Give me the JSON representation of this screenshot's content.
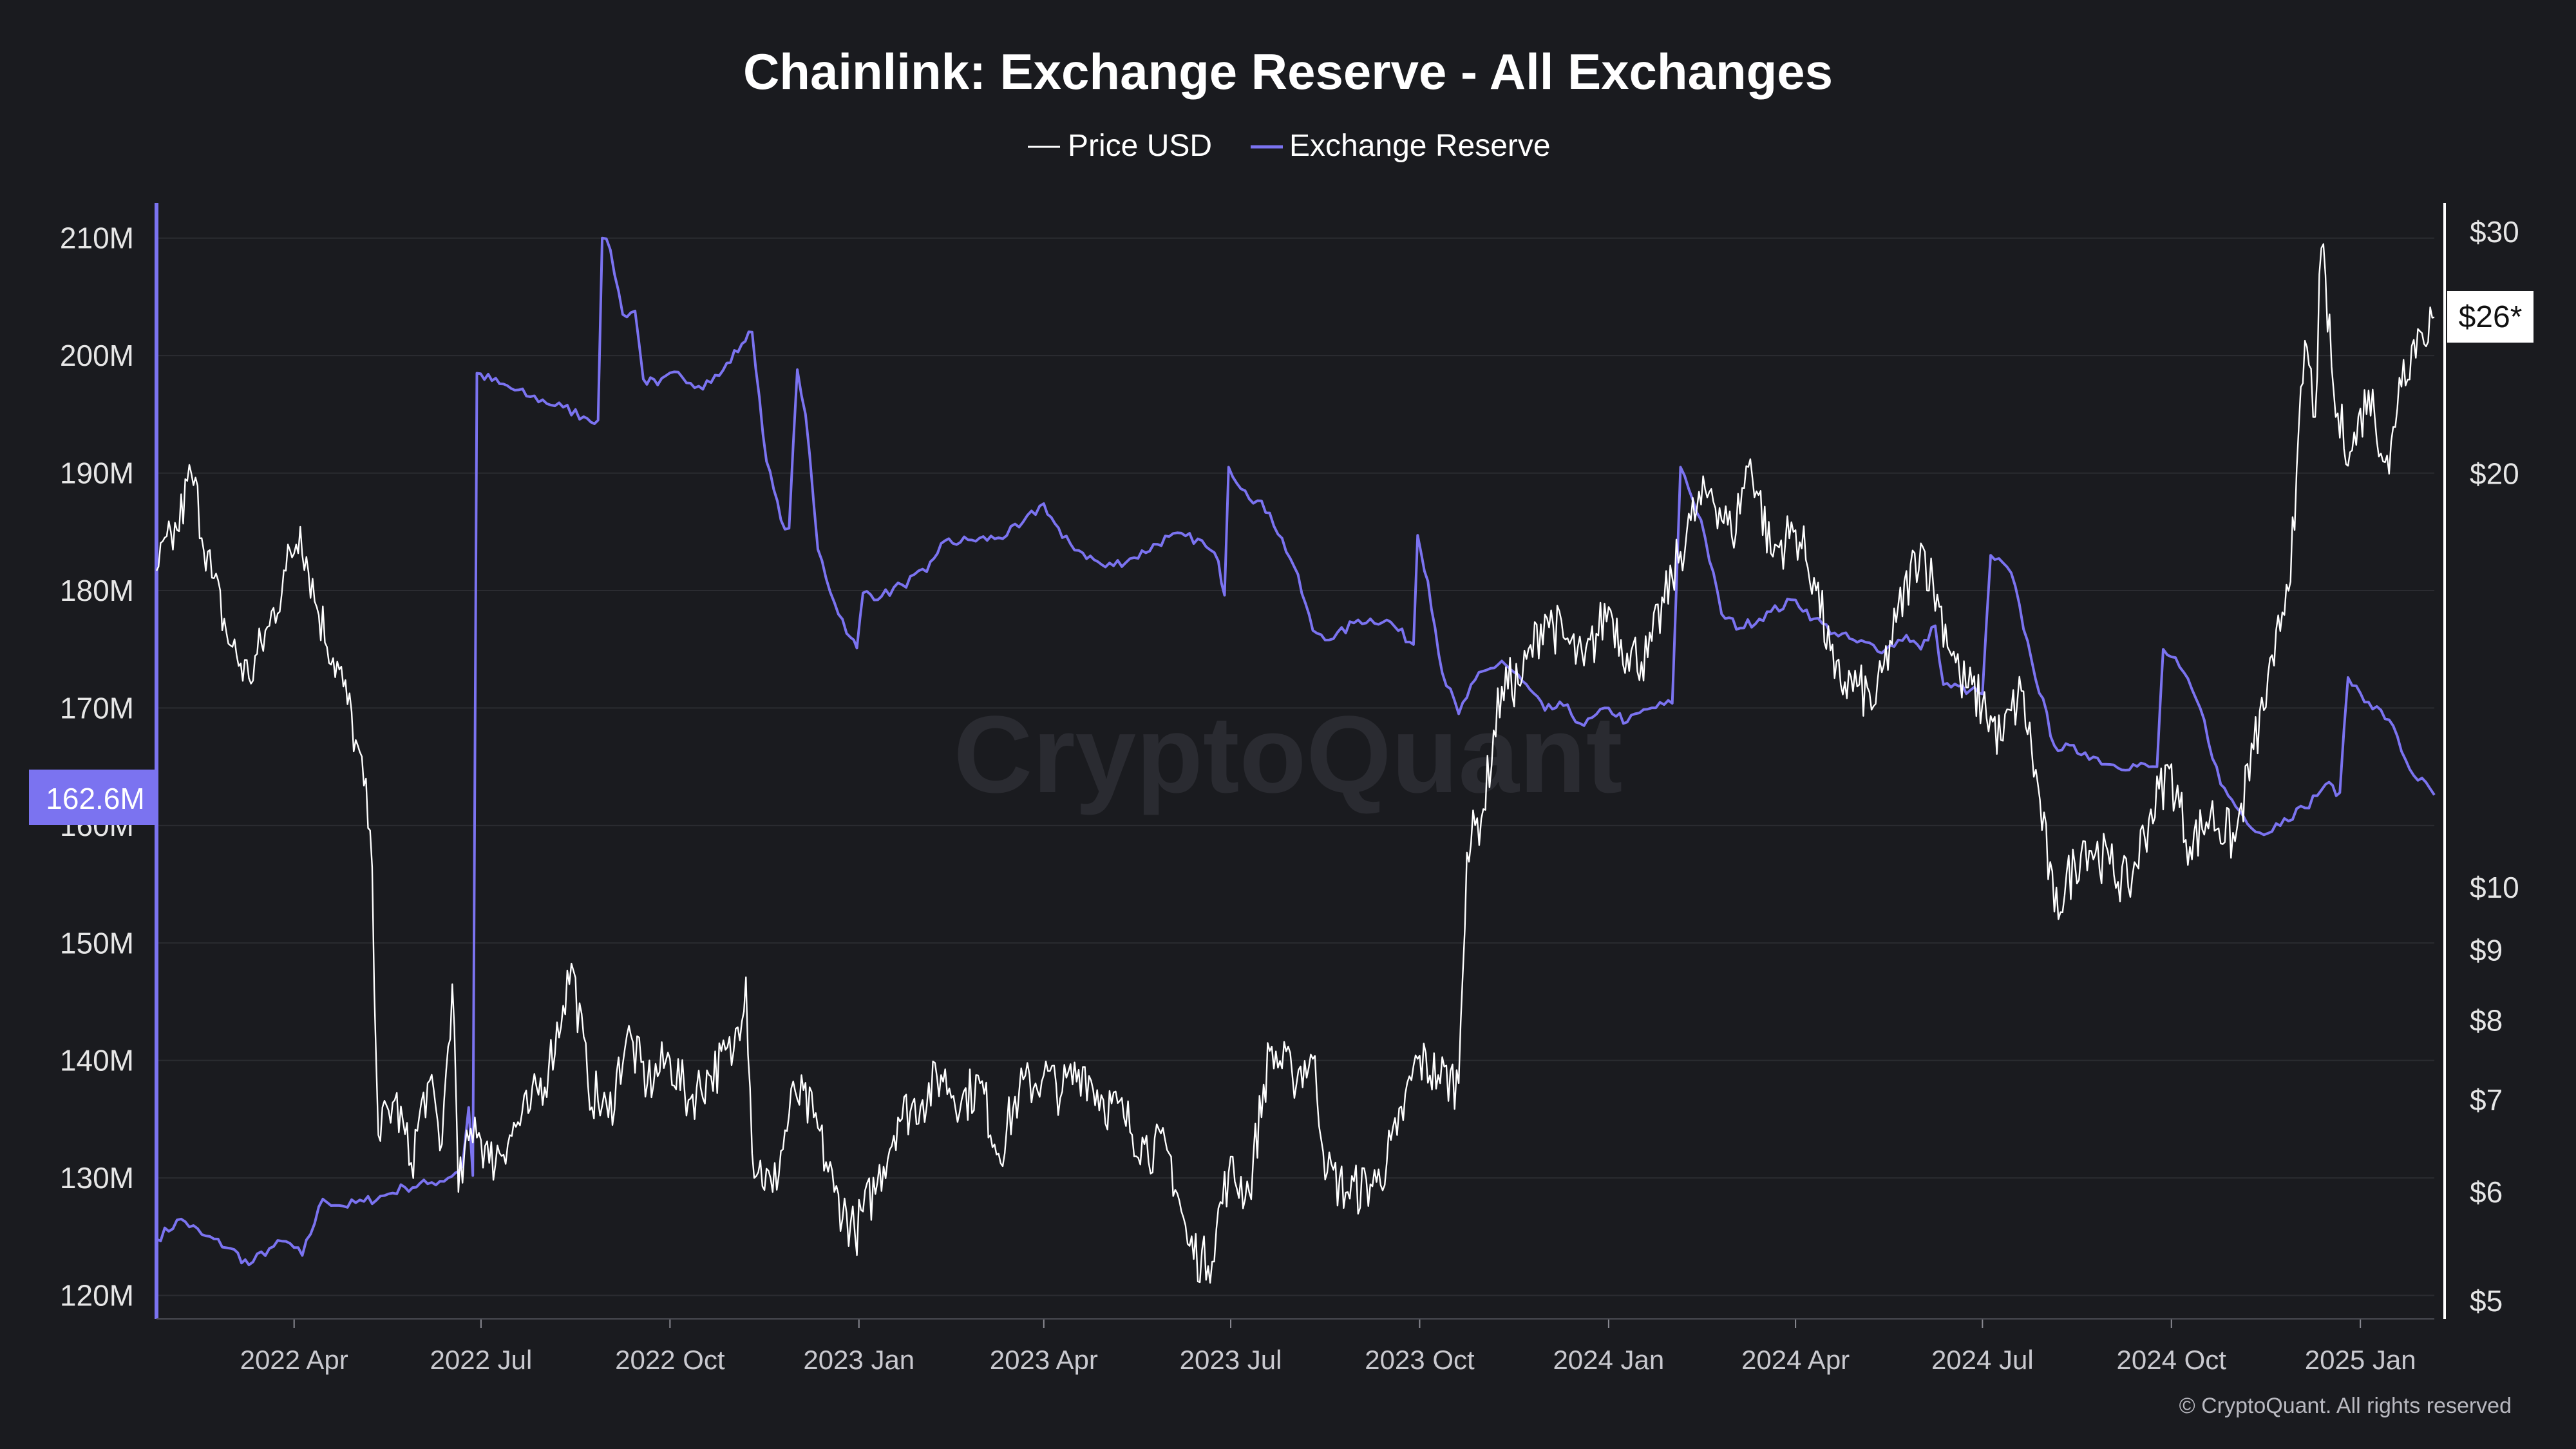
{
  "title": "Chainlink: Exchange Reserve - All Exchanges",
  "legend": [
    {
      "label": "Price USD",
      "color": "#ffffff"
    },
    {
      "label": "Exchange Reserve",
      "color": "#7b73f0"
    }
  ],
  "watermark": "CryptoQuant",
  "copyright": "© CryptoQuant. All rights reserved",
  "badges": {
    "reserve_current": "162.6M",
    "price_current": "$26*"
  },
  "colors": {
    "background": "#1a1b1f",
    "reserve": "#7b73f0",
    "price": "#ffffff",
    "grid": "#2b2c31"
  },
  "chart_data": {
    "type": "line",
    "title": "Chainlink: Exchange Reserve - All Exchanges",
    "grid": true,
    "legend_position": "top-center",
    "x_axis": {
      "type": "date",
      "range": [
        "2022-01-24",
        "2025-02-06"
      ],
      "tick_labels": [
        "2022 Apr",
        "2022 Jul",
        "2022 Oct",
        "2023 Jan",
        "2023 Apr",
        "2023 Jul",
        "2023 Oct",
        "2024 Jan",
        "2024 Apr",
        "2024 Jul",
        "2024 Oct",
        "2025 Jan"
      ],
      "tick_dates": [
        "2022-04-01",
        "2022-07-01",
        "2022-10-01",
        "2023-01-01",
        "2023-04-01",
        "2023-07-01",
        "2023-10-01",
        "2024-01-01",
        "2024-04-01",
        "2024-07-01",
        "2024-10-01",
        "2025-01-01"
      ]
    },
    "y_left": {
      "scale": "linear",
      "range": [
        118,
        213
      ],
      "tick_values": [
        120,
        130,
        140,
        150,
        160,
        170,
        180,
        190,
        200,
        210
      ],
      "tick_labels": [
        "120M",
        "130M",
        "140M",
        "150M",
        "160M",
        "170M",
        "180M",
        "190M",
        "200M",
        "210M"
      ]
    },
    "y_right": {
      "scale": "log",
      "range": [
        4.85,
        31.5
      ],
      "tick_values": [
        5,
        6,
        7,
        8,
        9,
        10,
        20,
        30
      ],
      "tick_labels": [
        "$5",
        "$6",
        "$7",
        "$8",
        "$9",
        "$10",
        "$20",
        "$30"
      ]
    },
    "series": [
      {
        "name": "Exchange Reserve",
        "axis": "left",
        "unit": "M",
        "points": [
          [
            "2022-01-24",
            124.8
          ],
          [
            "2022-02-05",
            126.5
          ],
          [
            "2022-02-15",
            125.2
          ],
          [
            "2022-03-01",
            124.0
          ],
          [
            "2022-03-10",
            122.6
          ],
          [
            "2022-03-20",
            124.0
          ],
          [
            "2022-03-28",
            124.6
          ],
          [
            "2022-04-05",
            123.4
          ],
          [
            "2022-04-15",
            128.2
          ],
          [
            "2022-04-25",
            127.6
          ],
          [
            "2022-05-05",
            128.0
          ],
          [
            "2022-05-15",
            128.5
          ],
          [
            "2022-05-25",
            129.2
          ],
          [
            "2022-06-05",
            129.5
          ],
          [
            "2022-06-15",
            130.0
          ],
          [
            "2022-06-22",
            131.0
          ],
          [
            "2022-06-25",
            136.0
          ],
          [
            "2022-06-27",
            130.2
          ],
          [
            "2022-06-29",
            198.5
          ],
          [
            "2022-07-10",
            197.6
          ],
          [
            "2022-07-25",
            196.5
          ],
          [
            "2022-08-10",
            195.6
          ],
          [
            "2022-08-20",
            194.8
          ],
          [
            "2022-08-27",
            194.5
          ],
          [
            "2022-08-29",
            210.0
          ],
          [
            "2022-09-02",
            209.0
          ],
          [
            "2022-09-08",
            203.5
          ],
          [
            "2022-09-14",
            203.8
          ],
          [
            "2022-09-18",
            198.0
          ],
          [
            "2022-09-25",
            197.5
          ],
          [
            "2022-10-05",
            198.6
          ],
          [
            "2022-10-15",
            197.4
          ],
          [
            "2022-10-25",
            198.3
          ],
          [
            "2022-11-05",
            201.0
          ],
          [
            "2022-11-10",
            202.0
          ],
          [
            "2022-11-17",
            191.0
          ],
          [
            "2022-11-24",
            186.0
          ],
          [
            "2022-11-28",
            185.3
          ],
          [
            "2022-12-02",
            198.8
          ],
          [
            "2022-12-06",
            195.0
          ],
          [
            "2022-12-12",
            183.5
          ],
          [
            "2022-12-20",
            179.0
          ],
          [
            "2022-12-28",
            176.0
          ],
          [
            "2022-12-31",
            175.1
          ],
          [
            "2023-01-03",
            179.8
          ],
          [
            "2023-01-12",
            179.5
          ],
          [
            "2023-01-22",
            180.5
          ],
          [
            "2023-02-03",
            181.6
          ],
          [
            "2023-02-10",
            184.0
          ],
          [
            "2023-02-25",
            184.3
          ],
          [
            "2023-03-10",
            184.5
          ],
          [
            "2023-03-20",
            185.4
          ],
          [
            "2023-04-01",
            187.4
          ],
          [
            "2023-04-10",
            184.5
          ],
          [
            "2023-04-20",
            183.2
          ],
          [
            "2023-05-01",
            182.0
          ],
          [
            "2023-05-15",
            182.8
          ],
          [
            "2023-06-01",
            184.6
          ],
          [
            "2023-06-15",
            184.4
          ],
          [
            "2023-06-25",
            182.5
          ],
          [
            "2023-06-28",
            179.6
          ],
          [
            "2023-06-30",
            190.5
          ],
          [
            "2023-07-08",
            188.5
          ],
          [
            "2023-07-20",
            186.6
          ],
          [
            "2023-08-01",
            182.0
          ],
          [
            "2023-08-10",
            176.6
          ],
          [
            "2023-08-20",
            175.9
          ],
          [
            "2023-09-01",
            177.5
          ],
          [
            "2023-09-15",
            177.5
          ],
          [
            "2023-09-28",
            175.4
          ],
          [
            "2023-09-30",
            184.7
          ],
          [
            "2023-10-05",
            180.8
          ],
          [
            "2023-10-12",
            173.0
          ],
          [
            "2023-10-20",
            169.5
          ],
          [
            "2023-10-28",
            172.4
          ],
          [
            "2023-11-10",
            174.0
          ],
          [
            "2023-11-20",
            172.3
          ],
          [
            "2023-12-01",
            169.8
          ],
          [
            "2023-12-10",
            170.2
          ],
          [
            "2023-12-20",
            168.5
          ],
          [
            "2024-01-01",
            170.0
          ],
          [
            "2024-01-10",
            168.8
          ],
          [
            "2024-01-20",
            169.9
          ],
          [
            "2024-02-01",
            170.4
          ],
          [
            "2024-02-05",
            190.5
          ],
          [
            "2024-02-15",
            186.0
          ],
          [
            "2024-02-25",
            178.0
          ],
          [
            "2024-03-05",
            176.8
          ],
          [
            "2024-03-20",
            178.2
          ],
          [
            "2024-04-01",
            179.2
          ],
          [
            "2024-04-10",
            177.6
          ],
          [
            "2024-04-20",
            176.4
          ],
          [
            "2024-05-01",
            175.6
          ],
          [
            "2024-05-15",
            175.0
          ],
          [
            "2024-05-25",
            176.2
          ],
          [
            "2024-06-01",
            175.0
          ],
          [
            "2024-06-08",
            177.0
          ],
          [
            "2024-06-12",
            172.0
          ],
          [
            "2024-06-25",
            171.5
          ],
          [
            "2024-07-01",
            171.2
          ],
          [
            "2024-07-05",
            183.0
          ],
          [
            "2024-07-15",
            181.5
          ],
          [
            "2024-07-25",
            174.0
          ],
          [
            "2024-08-05",
            166.8
          ],
          [
            "2024-08-20",
            166.2
          ],
          [
            "2024-09-01",
            165.2
          ],
          [
            "2024-09-20",
            165.0
          ],
          [
            "2024-09-24",
            165.0
          ],
          [
            "2024-09-27",
            175.0
          ],
          [
            "2024-10-05",
            173.5
          ],
          [
            "2024-10-15",
            170.0
          ],
          [
            "2024-10-25",
            163.5
          ],
          [
            "2024-11-05",
            160.8
          ],
          [
            "2024-11-15",
            159.2
          ],
          [
            "2024-11-25",
            160.6
          ],
          [
            "2024-12-05",
            161.5
          ],
          [
            "2024-12-15",
            163.5
          ],
          [
            "2024-12-22",
            162.8
          ],
          [
            "2024-12-26",
            172.6
          ],
          [
            "2025-01-05",
            170.5
          ],
          [
            "2025-01-15",
            169.0
          ],
          [
            "2025-01-25",
            164.8
          ],
          [
            "2025-02-06",
            162.6
          ]
        ]
      },
      {
        "name": "Price USD",
        "axis": "right",
        "unit": "USD",
        "points": [
          [
            "2022-01-24",
            17.0
          ],
          [
            "2022-02-03",
            18.2
          ],
          [
            "2022-02-10",
            20.0
          ],
          [
            "2022-02-20",
            16.8
          ],
          [
            "2022-03-01",
            15.0
          ],
          [
            "2022-03-10",
            14.2
          ],
          [
            "2022-03-20",
            15.5
          ],
          [
            "2022-03-28",
            17.0
          ],
          [
            "2022-04-04",
            18.3
          ],
          [
            "2022-04-12",
            16.0
          ],
          [
            "2022-04-25",
            14.0
          ],
          [
            "2022-05-01",
            12.8
          ],
          [
            "2022-05-08",
            11.0
          ],
          [
            "2022-05-12",
            6.6
          ],
          [
            "2022-05-20",
            7.0
          ],
          [
            "2022-05-28",
            6.3
          ],
          [
            "2022-06-05",
            7.2
          ],
          [
            "2022-06-12",
            6.5
          ],
          [
            "2022-06-17",
            8.5
          ],
          [
            "2022-06-20",
            6.0
          ],
          [
            "2022-06-28",
            6.8
          ],
          [
            "2022-07-05",
            6.3
          ],
          [
            "2022-07-15",
            6.6
          ],
          [
            "2022-07-25",
            6.9
          ],
          [
            "2022-08-03",
            7.4
          ],
          [
            "2022-08-10",
            8.2
          ],
          [
            "2022-08-14",
            8.8
          ],
          [
            "2022-08-22",
            7.2
          ],
          [
            "2022-09-01",
            6.8
          ],
          [
            "2022-09-10",
            7.8
          ],
          [
            "2022-09-20",
            7.2
          ],
          [
            "2022-10-01",
            7.5
          ],
          [
            "2022-10-10",
            7.0
          ],
          [
            "2022-10-20",
            7.3
          ],
          [
            "2022-11-01",
            7.6
          ],
          [
            "2022-11-07",
            8.6
          ],
          [
            "2022-11-10",
            6.4
          ],
          [
            "2022-11-20",
            6.0
          ],
          [
            "2022-12-01",
            7.1
          ],
          [
            "2022-12-10",
            6.8
          ],
          [
            "2022-12-20",
            6.0
          ],
          [
            "2022-12-30",
            5.6
          ],
          [
            "2023-01-10",
            6.1
          ],
          [
            "2023-01-20",
            6.8
          ],
          [
            "2023-02-01",
            7.0
          ],
          [
            "2023-02-10",
            7.3
          ],
          [
            "2023-02-20",
            7.0
          ],
          [
            "2023-03-01",
            7.2
          ],
          [
            "2023-03-10",
            6.4
          ],
          [
            "2023-03-20",
            7.1
          ],
          [
            "2023-04-01",
            7.3
          ],
          [
            "2023-04-10",
            7.1
          ],
          [
            "2023-04-20",
            7.4
          ],
          [
            "2023-04-30",
            7.0
          ],
          [
            "2023-05-10",
            6.8
          ],
          [
            "2023-05-20",
            6.5
          ],
          [
            "2023-06-01",
            6.4
          ],
          [
            "2023-06-10",
            5.5
          ],
          [
            "2023-06-20",
            5.3
          ],
          [
            "2023-06-30",
            6.2
          ],
          [
            "2023-07-10",
            6.0
          ],
          [
            "2023-07-20",
            7.6
          ],
          [
            "2023-07-31",
            7.3
          ],
          [
            "2023-08-10",
            7.5
          ],
          [
            "2023-08-17",
            6.2
          ],
          [
            "2023-08-27",
            6.0
          ],
          [
            "2023-09-10",
            6.1
          ],
          [
            "2023-09-20",
            6.6
          ],
          [
            "2023-09-30",
            7.5
          ],
          [
            "2023-10-10",
            7.3
          ],
          [
            "2023-10-20",
            7.2
          ],
          [
            "2023-10-24",
            10.6
          ],
          [
            "2023-11-01",
            11.4
          ],
          [
            "2023-11-10",
            14.0
          ],
          [
            "2023-11-20",
            14.2
          ],
          [
            "2023-12-01",
            15.8
          ],
          [
            "2023-12-10",
            15.2
          ],
          [
            "2023-12-20",
            14.5
          ],
          [
            "2024-01-01",
            16.0
          ],
          [
            "2024-01-10",
            14.8
          ],
          [
            "2024-01-20",
            14.7
          ],
          [
            "2024-02-01",
            16.8
          ],
          [
            "2024-02-10",
            18.5
          ],
          [
            "2024-02-20",
            19.5
          ],
          [
            "2024-03-01",
            18.0
          ],
          [
            "2024-03-10",
            20.5
          ],
          [
            "2024-03-20",
            17.5
          ],
          [
            "2024-04-01",
            18.2
          ],
          [
            "2024-04-10",
            16.8
          ],
          [
            "2024-04-20",
            14.2
          ],
          [
            "2024-05-01",
            14.0
          ],
          [
            "2024-05-10",
            13.6
          ],
          [
            "2024-05-20",
            15.6
          ],
          [
            "2024-06-01",
            17.8
          ],
          [
            "2024-06-10",
            16.0
          ],
          [
            "2024-06-20",
            14.2
          ],
          [
            "2024-07-01",
            13.6
          ],
          [
            "2024-07-10",
            12.8
          ],
          [
            "2024-07-20",
            13.9
          ],
          [
            "2024-08-05",
            9.6
          ],
          [
            "2024-08-20",
            10.8
          ],
          [
            "2024-09-01",
            10.4
          ],
          [
            "2024-09-10",
            10.0
          ],
          [
            "2024-09-20",
            11.2
          ],
          [
            "2024-09-30",
            12.2
          ],
          [
            "2024-10-10",
            10.7
          ],
          [
            "2024-10-20",
            11.3
          ],
          [
            "2024-11-01",
            10.8
          ],
          [
            "2024-11-10",
            12.6
          ],
          [
            "2024-11-20",
            14.5
          ],
          [
            "2024-11-30",
            18.2
          ],
          [
            "2024-12-05",
            25.0
          ],
          [
            "2024-12-10",
            22.0
          ],
          [
            "2024-12-13",
            29.2
          ],
          [
            "2024-12-20",
            22.0
          ],
          [
            "2024-12-28",
            20.8
          ],
          [
            "2025-01-05",
            23.0
          ],
          [
            "2025-01-15",
            20.0
          ],
          [
            "2025-01-20",
            23.5
          ],
          [
            "2025-01-30",
            25.4
          ],
          [
            "2025-02-06",
            26.0
          ]
        ]
      }
    ]
  }
}
